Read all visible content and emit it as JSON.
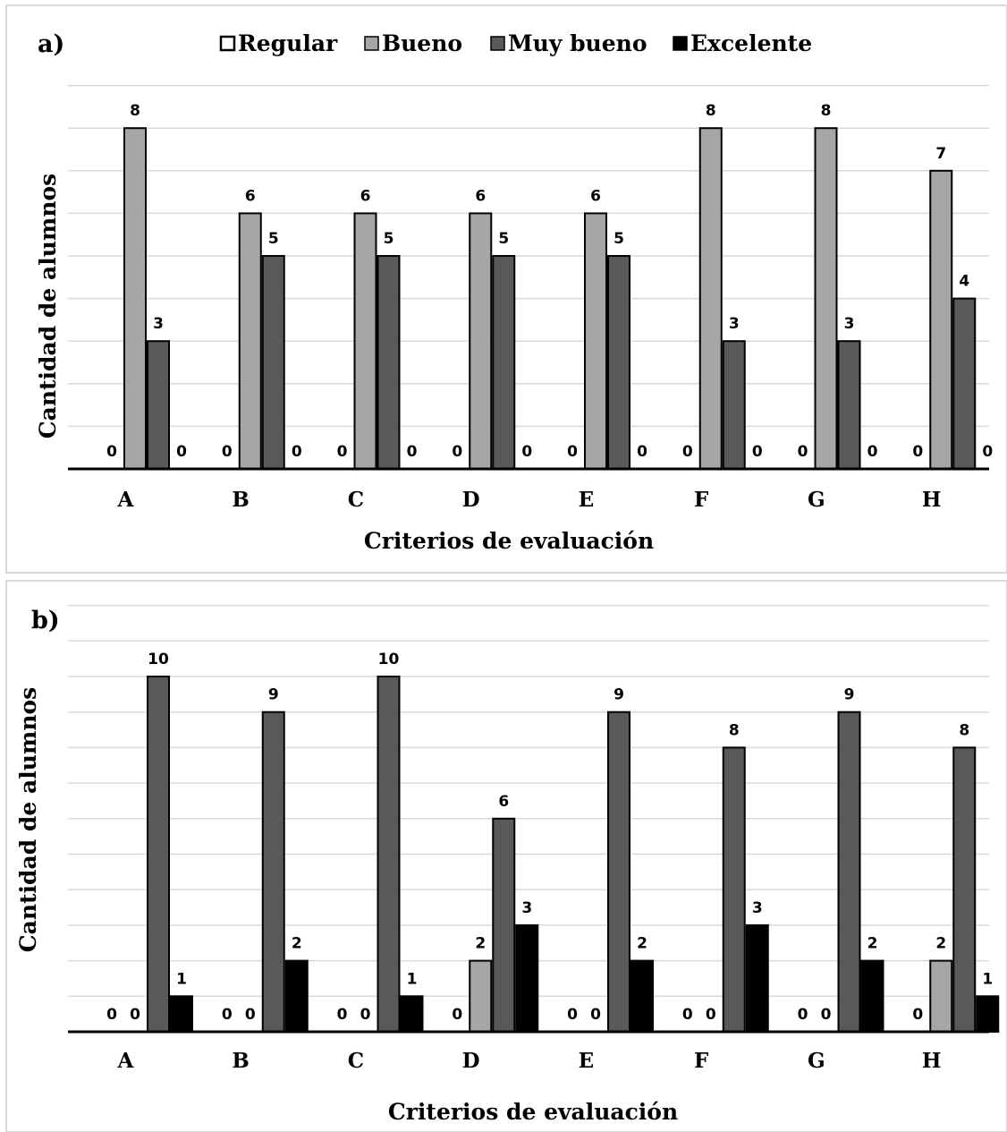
{
  "colors": {
    "Regular": "#ffffff",
    "Bueno": "#a6a6a6",
    "Muy bueno": "#595959",
    "Excelente": "#000000"
  },
  "legend": [
    "Regular",
    "Bueno",
    "Muy bueno",
    "Excelente"
  ],
  "chart_data": [
    {
      "panel": "a)",
      "type": "bar",
      "categories": [
        "A",
        "B",
        "C",
        "D",
        "E",
        "F",
        "G",
        "H"
      ],
      "series": [
        {
          "name": "Regular",
          "values": [
            0,
            0,
            0,
            0,
            0,
            0,
            0,
            0
          ]
        },
        {
          "name": "Bueno",
          "values": [
            8,
            6,
            6,
            6,
            6,
            8,
            8,
            7
          ]
        },
        {
          "name": "Muy bueno",
          "values": [
            3,
            5,
            5,
            5,
            5,
            3,
            3,
            4
          ]
        },
        {
          "name": "Excelente",
          "values": [
            0,
            0,
            0,
            0,
            0,
            0,
            0,
            0
          ]
        }
      ],
      "xlabel": "Criterios  de evaluación",
      "ylabel": "Cantidad de alumnos",
      "ylim": [
        0,
        9
      ],
      "grid": true,
      "legend_position": "top"
    },
    {
      "panel": "b)",
      "type": "bar",
      "categories": [
        "A",
        "B",
        "C",
        "D",
        "E",
        "F",
        "G",
        "H"
      ],
      "series": [
        {
          "name": "Regular",
          "values": [
            0,
            0,
            0,
            0,
            0,
            0,
            0,
            0
          ]
        },
        {
          "name": "Bueno",
          "values": [
            0,
            0,
            0,
            2,
            0,
            0,
            0,
            2
          ]
        },
        {
          "name": "Muy bueno",
          "values": [
            10,
            9,
            10,
            6,
            9,
            8,
            9,
            8
          ]
        },
        {
          "name": "Excelente",
          "values": [
            1,
            2,
            1,
            3,
            2,
            3,
            2,
            1
          ]
        }
      ],
      "xlabel": "Criterios de evaluación",
      "ylabel": "Cantidad de alumnos",
      "ylim": [
        0,
        12
      ],
      "grid": true,
      "legend_position": "none"
    }
  ]
}
